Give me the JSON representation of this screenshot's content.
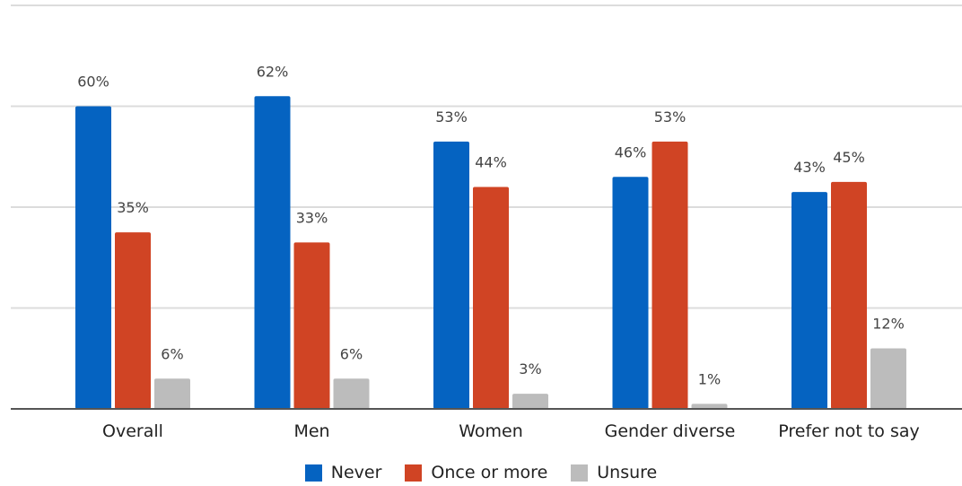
{
  "chart_data": {
    "type": "bar",
    "categories": [
      "Overall",
      "Men",
      "Women",
      "Gender diverse",
      "Prefer not to say"
    ],
    "series": [
      {
        "name": "Never",
        "color": "#0563c1",
        "values": [
          60,
          62,
          53,
          46,
          43
        ],
        "labels": [
          "60%",
          "62%",
          "53%",
          "46%",
          "43%"
        ]
      },
      {
        "name": "Once or more",
        "color": "#d04424",
        "values": [
          35,
          33,
          44,
          53,
          45
        ],
        "labels": [
          "35%",
          "33%",
          "44%",
          "53%",
          "45%"
        ]
      },
      {
        "name": "Unsure",
        "color": "#bcbcbc",
        "values": [
          6,
          6,
          3,
          1,
          12
        ],
        "labels": [
          "6%",
          "6%",
          "3%",
          "1%",
          "12%"
        ]
      }
    ],
    "ylim": [
      0,
      80
    ],
    "gridlines": true,
    "legend_position": "bottom"
  }
}
